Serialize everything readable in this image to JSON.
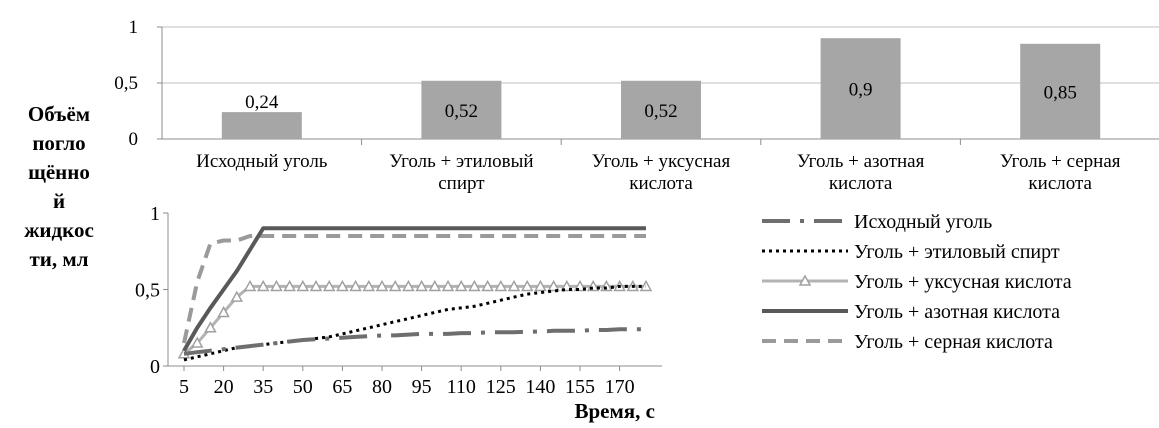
{
  "y_axis_label": [
    "Объём",
    "погло",
    "щённо",
    "й",
    "жидкос",
    "ти, мл"
  ],
  "chart_data": [
    {
      "type": "bar",
      "categories": [
        [
          "Исходный уголь"
        ],
        [
          "Уголь + этиловый",
          "спирт"
        ],
        [
          "Уголь +  уксусная",
          "кислота"
        ],
        [
          "Уголь + азотная",
          "кислота"
        ],
        [
          "Уголь + серная",
          "кислота"
        ]
      ],
      "values": [
        0.24,
        0.52,
        0.52,
        0.9,
        0.85
      ],
      "data_labels": [
        "0,24",
        "0,52",
        "0,52",
        "0,9",
        "0,85"
      ],
      "ylim": [
        0,
        1
      ],
      "yticks": [
        "0",
        "0,5",
        "1"
      ],
      "bar_color": "#a6a6a6",
      "grid": true
    },
    {
      "type": "line",
      "x": [
        5,
        10,
        15,
        20,
        25,
        30,
        35,
        40,
        45,
        50,
        55,
        60,
        65,
        70,
        75,
        80,
        85,
        90,
        95,
        100,
        105,
        110,
        115,
        120,
        125,
        130,
        135,
        140,
        145,
        150,
        155,
        160,
        165,
        170,
        175,
        180
      ],
      "xticks": [
        "5",
        "20",
        "35",
        "50",
        "65",
        "80",
        "95",
        "110",
        "125",
        "140",
        "155",
        "170"
      ],
      "xlabel": "Время, с",
      "ylim": [
        0,
        1
      ],
      "yticks": [
        "0",
        "0,5",
        "1"
      ],
      "legend_position": "right",
      "series": [
        {
          "name": "Исходный уголь",
          "color": "#6e6e6e",
          "style": "dashdot",
          "values": [
            0.08,
            0.09,
            0.1,
            0.11,
            0.12,
            0.13,
            0.14,
            0.15,
            0.16,
            0.17,
            0.175,
            0.18,
            0.185,
            0.19,
            0.195,
            0.2,
            0.2,
            0.205,
            0.21,
            0.21,
            0.21,
            0.215,
            0.215,
            0.22,
            0.22,
            0.22,
            0.225,
            0.225,
            0.23,
            0.23,
            0.23,
            0.235,
            0.235,
            0.24,
            0.24,
            0.24
          ]
        },
        {
          "name": "Уголь + этиловый спирт",
          "color": "#000000",
          "style": "dotted",
          "values": [
            0.04,
            0.06,
            0.08,
            0.1,
            0.12,
            0.13,
            0.14,
            0.15,
            0.16,
            0.17,
            0.18,
            0.19,
            0.21,
            0.23,
            0.25,
            0.27,
            0.29,
            0.31,
            0.33,
            0.35,
            0.37,
            0.38,
            0.39,
            0.41,
            0.43,
            0.45,
            0.47,
            0.48,
            0.49,
            0.5,
            0.5,
            0.51,
            0.51,
            0.52,
            0.52,
            0.52
          ]
        },
        {
          "name": "Уголь +  уксусная  кислота",
          "color": "#b3b3b3",
          "style": "triangle",
          "values": [
            0.08,
            0.15,
            0.25,
            0.35,
            0.45,
            0.52,
            0.52,
            0.52,
            0.52,
            0.52,
            0.52,
            0.52,
            0.52,
            0.52,
            0.52,
            0.52,
            0.52,
            0.52,
            0.52,
            0.52,
            0.52,
            0.52,
            0.52,
            0.52,
            0.52,
            0.52,
            0.52,
            0.52,
            0.52,
            0.52,
            0.52,
            0.52,
            0.52,
            0.52,
            0.52,
            0.52
          ]
        },
        {
          "name": "Уголь + азотная кислота",
          "color": "#595959",
          "style": "solid",
          "values": [
            0.1,
            0.25,
            0.38,
            0.5,
            0.62,
            0.76,
            0.9,
            0.9,
            0.9,
            0.9,
            0.9,
            0.9,
            0.9,
            0.9,
            0.9,
            0.9,
            0.9,
            0.9,
            0.9,
            0.9,
            0.9,
            0.9,
            0.9,
            0.9,
            0.9,
            0.9,
            0.9,
            0.9,
            0.9,
            0.9,
            0.9,
            0.9,
            0.9,
            0.9,
            0.9,
            0.9
          ]
        },
        {
          "name": "Уголь + серная кислота",
          "color": "#9a9a9a",
          "style": "dashed",
          "values": [
            0.15,
            0.55,
            0.8,
            0.82,
            0.82,
            0.85,
            0.85,
            0.85,
            0.85,
            0.85,
            0.85,
            0.85,
            0.85,
            0.85,
            0.85,
            0.85,
            0.85,
            0.85,
            0.85,
            0.85,
            0.85,
            0.85,
            0.85,
            0.85,
            0.85,
            0.85,
            0.85,
            0.85,
            0.85,
            0.85,
            0.85,
            0.85,
            0.85,
            0.85,
            0.85,
            0.85
          ]
        }
      ]
    }
  ]
}
